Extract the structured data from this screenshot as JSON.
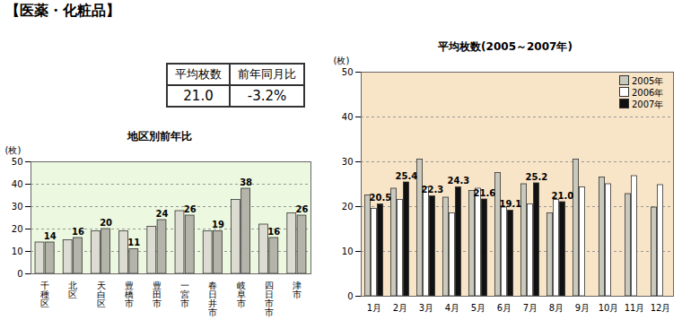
{
  "header": {
    "title": "【医薬・化粧品】"
  },
  "table": {
    "columns": [
      "平均枚数",
      "前年同月比"
    ],
    "rows": [
      [
        "21.0",
        "-3.2%"
      ]
    ]
  },
  "chart_data": [
    {
      "type": "bar",
      "title": "地区別前年比",
      "y_label": "(枚)",
      "categories": [
        "千種区",
        "北区",
        "天白区",
        "豊橋市",
        "豊田市",
        "一宮市",
        "春日井市",
        "岐阜市",
        "四日市市",
        "津市"
      ],
      "series": [
        {
          "color": "#dcdcd2",
          "values": [
            14,
            15,
            19,
            19,
            21,
            28,
            19,
            33,
            22,
            27
          ]
        },
        {
          "color": "#b4b4aa",
          "values": [
            14,
            16,
            20,
            11,
            24,
            26,
            19,
            38,
            16,
            26
          ],
          "data_labels": true
        }
      ],
      "ylim": [
        0,
        50
      ],
      "yticks": [
        0,
        10,
        20,
        30,
        40,
        50
      ],
      "grid": true
    },
    {
      "type": "bar",
      "title": "平均枚数(2005～2007年)",
      "y_label": "(枚)",
      "categories": [
        "1月",
        "2月",
        "3月",
        "4月",
        "5月",
        "6月",
        "7月",
        "8月",
        "9月",
        "10月",
        "11月",
        "12月"
      ],
      "series": [
        {
          "name": "2005年",
          "color": "#c9c9bd",
          "values": [
            22.5,
            24,
            30.5,
            22,
            23.5,
            27.5,
            25,
            18.5,
            30.5,
            26.5,
            22.8,
            19.8
          ]
        },
        {
          "name": "2006年",
          "color": "#ffffff",
          "values": [
            19.5,
            21.5,
            24.3,
            18.5,
            24,
            19.8,
            20.5,
            21.5,
            24.3,
            25,
            26.8,
            24.8
          ]
        },
        {
          "name": "2007年",
          "color": "#111111",
          "values": [
            20.5,
            25.4,
            22.3,
            24.3,
            21.6,
            19.1,
            25.2,
            21,
            null,
            null,
            null,
            null
          ],
          "value_labels": [
            "20.5",
            "25.4",
            "22.3",
            "24.3",
            "21.6",
            "19.1",
            "25.2",
            "21.0",
            null,
            null,
            null,
            null
          ],
          "data_labels": true
        }
      ],
      "ylim": [
        0,
        50
      ],
      "yticks": [
        0,
        10,
        20,
        30,
        40,
        50
      ],
      "grid": true,
      "legend": "top-right"
    }
  ]
}
